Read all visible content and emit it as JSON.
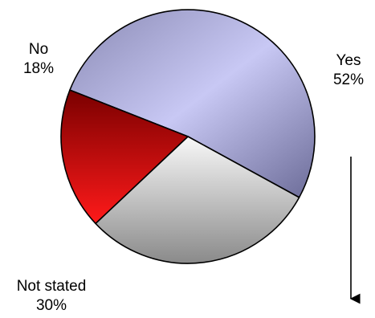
{
  "chart_data": {
    "type": "pie",
    "title": "",
    "slices": [
      {
        "label": "Yes",
        "value": 52,
        "value_label": "52%",
        "color": "#a8a8d8"
      },
      {
        "label": "Not stated",
        "value": 30,
        "value_label": "30%",
        "color": "#d8d8d8"
      },
      {
        "label": "No",
        "value": 18,
        "value_label": "18%",
        "color": "#d01010"
      }
    ],
    "legend": "none",
    "annotations": [
      {
        "type": "arrow",
        "direction": "down",
        "placement": "right"
      }
    ]
  }
}
